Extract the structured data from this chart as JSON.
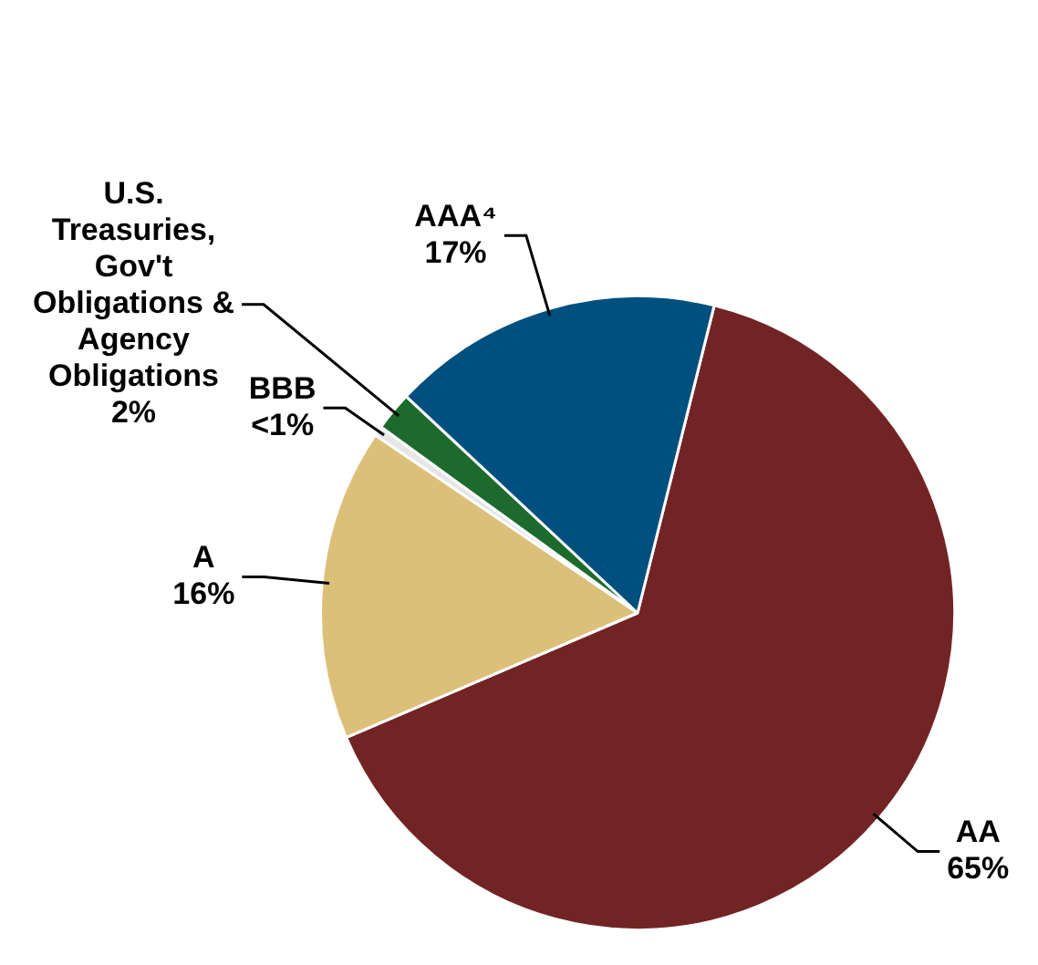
{
  "chart_data": {
    "type": "pie",
    "categories": [
      "AA",
      "A",
      "BBB",
      "U.S. Treasuries, Gov't Obligations & Agency Obligations",
      "AAA⁴"
    ],
    "values": [
      65,
      16,
      0.5,
      2,
      17
    ],
    "value_labels": [
      "65%",
      "16%",
      "<1%",
      "2%",
      "17%"
    ],
    "colors": [
      "#722424",
      "#dcc07a",
      "#e6e6e6",
      "#1d6b2c",
      "#00507f"
    ],
    "legend": false
  }
}
